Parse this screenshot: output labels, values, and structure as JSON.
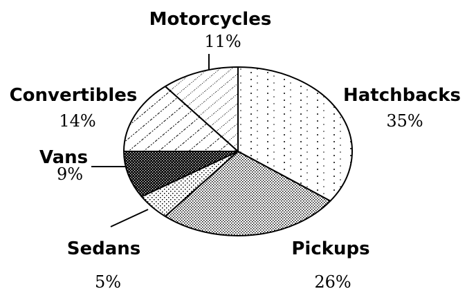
{
  "chart_data": {
    "type": "pie",
    "title": "",
    "slices": [
      {
        "label": "Hatchbacks",
        "value": 35,
        "value_label": "35%",
        "pattern": "vertical-dotted-lines"
      },
      {
        "label": "Pickups",
        "value": 26,
        "value_label": "26%",
        "pattern": "fine-dots"
      },
      {
        "label": "Sedans",
        "value": 5,
        "value_label": "5%",
        "pattern": "sparse-dots"
      },
      {
        "label": "Vans",
        "value": 9,
        "value_label": "9%",
        "pattern": "dense-dark-crosshatch"
      },
      {
        "label": "Convertibles",
        "value": 14,
        "value_label": "14%",
        "pattern": "diagonal-dashed-lines"
      },
      {
        "label": "Motorcycles",
        "value": 11,
        "value_label": "11%",
        "pattern": "diagonal-dotted-lines"
      }
    ],
    "legend": "none",
    "colors": {
      "ink": "#000000",
      "background": "#ffffff"
    }
  }
}
